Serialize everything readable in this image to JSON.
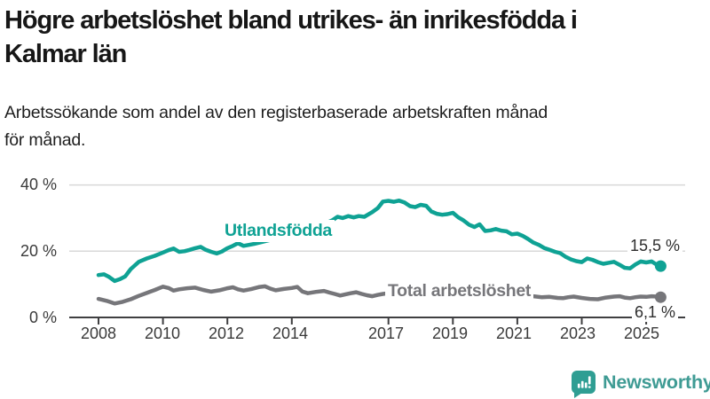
{
  "header": {
    "title_lines": [
      "Högre arbetslöshet bland utrikes- än inrikesfödda i",
      "Kalmar län"
    ],
    "subtitle_lines": [
      "Arbetssökande som andel av den registerbaserade arbetskraften månad",
      "för månad."
    ]
  },
  "chart_data": {
    "type": "line",
    "title": "Högre arbetslöshet bland utrikes- än inrikesfödda i Kalmar län",
    "subtitle": "Arbetssökande som andel av den registerbaserade arbetskraften månad för månad.",
    "unit": "%",
    "ylim": [
      0,
      42
    ],
    "x_range": [
      2008,
      2025.5
    ],
    "grid": "horizontal",
    "grid_color": "#d9d9d9",
    "axis_color": "#3f3f41",
    "legend_position": "inline-labels-on-lines",
    "y_ticks": [
      {
        "value": 0,
        "label": "0 %"
      },
      {
        "value": 20,
        "label": "20 %"
      },
      {
        "value": 40,
        "label": "40 %"
      }
    ],
    "x_ticks": [
      {
        "value": 2008,
        "label": "2008"
      },
      {
        "value": 2010,
        "label": "2010"
      },
      {
        "value": 2012,
        "label": "2012"
      },
      {
        "value": 2014,
        "label": "2014"
      },
      {
        "value": 2017,
        "label": "2017"
      },
      {
        "value": 2019,
        "label": "2019"
      },
      {
        "value": 2021,
        "label": "2021"
      },
      {
        "value": 2023,
        "label": "2023"
      },
      {
        "value": 2025,
        "label": "2025"
      }
    ],
    "series": [
      {
        "name": "Utlandsfödda",
        "color": "#0fa294",
        "end_label": "15,5 %",
        "end_value": 15.5,
        "points": [
          [
            2008.0,
            12.8
          ],
          [
            2008.17,
            13.0
          ],
          [
            2008.33,
            12.2
          ],
          [
            2008.5,
            11.0
          ],
          [
            2008.67,
            11.6
          ],
          [
            2008.83,
            12.4
          ],
          [
            2009.0,
            14.6
          ],
          [
            2009.25,
            16.8
          ],
          [
            2009.5,
            17.8
          ],
          [
            2009.75,
            18.6
          ],
          [
            2010.0,
            19.6
          ],
          [
            2010.17,
            20.3
          ],
          [
            2010.33,
            20.8
          ],
          [
            2010.5,
            19.8
          ],
          [
            2010.67,
            20.0
          ],
          [
            2010.83,
            20.4
          ],
          [
            2011.0,
            20.9
          ],
          [
            2011.17,
            21.3
          ],
          [
            2011.33,
            20.4
          ],
          [
            2011.5,
            19.8
          ],
          [
            2011.67,
            19.3
          ],
          [
            2011.83,
            19.9
          ],
          [
            2012.0,
            20.9
          ],
          [
            2012.17,
            21.6
          ],
          [
            2012.33,
            22.4
          ],
          [
            2012.5,
            21.6
          ],
          [
            2012.67,
            21.9
          ],
          [
            2012.83,
            22.2
          ],
          [
            2013.0,
            22.6
          ],
          [
            2013.25,
            23.2
          ],
          [
            2013.5,
            23.8
          ],
          [
            2013.75,
            24.4
          ],
          [
            2014.0,
            25.1
          ],
          [
            2014.25,
            25.8
          ],
          [
            2014.5,
            26.5
          ],
          [
            2014.75,
            27.3
          ],
          [
            2015.0,
            28.2
          ],
          [
            2015.25,
            29.3
          ],
          [
            2015.42,
            30.4
          ],
          [
            2015.58,
            30.0
          ],
          [
            2015.75,
            30.6
          ],
          [
            2015.92,
            30.2
          ],
          [
            2016.08,
            30.6
          ],
          [
            2016.25,
            30.4
          ],
          [
            2016.5,
            31.8
          ],
          [
            2016.67,
            33.0
          ],
          [
            2016.83,
            35.0
          ],
          [
            2017.0,
            35.2
          ],
          [
            2017.17,
            34.9
          ],
          [
            2017.33,
            35.3
          ],
          [
            2017.5,
            34.7
          ],
          [
            2017.67,
            33.6
          ],
          [
            2017.83,
            33.3
          ],
          [
            2018.0,
            34.0
          ],
          [
            2018.17,
            33.7
          ],
          [
            2018.33,
            32.0
          ],
          [
            2018.5,
            31.3
          ],
          [
            2018.67,
            31.0
          ],
          [
            2018.83,
            31.2
          ],
          [
            2019.0,
            31.6
          ],
          [
            2019.17,
            30.2
          ],
          [
            2019.33,
            29.3
          ],
          [
            2019.5,
            28.0
          ],
          [
            2019.67,
            27.3
          ],
          [
            2019.83,
            28.1
          ],
          [
            2020.0,
            26.1
          ],
          [
            2020.17,
            26.3
          ],
          [
            2020.33,
            26.7
          ],
          [
            2020.5,
            26.2
          ],
          [
            2020.67,
            26.0
          ],
          [
            2020.83,
            25.1
          ],
          [
            2021.0,
            25.3
          ],
          [
            2021.17,
            24.6
          ],
          [
            2021.33,
            23.7
          ],
          [
            2021.5,
            22.6
          ],
          [
            2021.67,
            21.9
          ],
          [
            2021.83,
            21.0
          ],
          [
            2022.0,
            20.4
          ],
          [
            2022.17,
            19.8
          ],
          [
            2022.33,
            19.4
          ],
          [
            2022.5,
            18.3
          ],
          [
            2022.67,
            17.5
          ],
          [
            2022.83,
            17.0
          ],
          [
            2023.0,
            16.7
          ],
          [
            2023.17,
            17.8
          ],
          [
            2023.33,
            17.4
          ],
          [
            2023.5,
            16.7
          ],
          [
            2023.67,
            16.2
          ],
          [
            2023.83,
            16.5
          ],
          [
            2024.0,
            16.8
          ],
          [
            2024.17,
            15.9
          ],
          [
            2024.33,
            15.0
          ],
          [
            2024.5,
            14.8
          ],
          [
            2024.67,
            16.0
          ],
          [
            2024.83,
            16.9
          ],
          [
            2025.0,
            16.6
          ],
          [
            2025.17,
            16.9
          ],
          [
            2025.33,
            15.9
          ],
          [
            2025.45,
            15.5
          ]
        ]
      },
      {
        "name": "Total arbetslöshet",
        "color": "#76767a",
        "end_label": "6,1 %",
        "end_value": 6.1,
        "points": [
          [
            2008.0,
            5.6
          ],
          [
            2008.25,
            5.0
          ],
          [
            2008.5,
            4.2
          ],
          [
            2008.75,
            4.7
          ],
          [
            2009.0,
            5.5
          ],
          [
            2009.25,
            6.5
          ],
          [
            2009.5,
            7.4
          ],
          [
            2009.75,
            8.3
          ],
          [
            2010.0,
            9.3
          ],
          [
            2010.17,
            8.9
          ],
          [
            2010.33,
            8.1
          ],
          [
            2010.5,
            8.5
          ],
          [
            2010.75,
            8.8
          ],
          [
            2011.0,
            9.0
          ],
          [
            2011.25,
            8.3
          ],
          [
            2011.5,
            7.8
          ],
          [
            2011.75,
            8.2
          ],
          [
            2012.0,
            8.8
          ],
          [
            2012.17,
            9.1
          ],
          [
            2012.33,
            8.5
          ],
          [
            2012.5,
            8.1
          ],
          [
            2012.75,
            8.6
          ],
          [
            2013.0,
            9.2
          ],
          [
            2013.17,
            9.4
          ],
          [
            2013.33,
            8.7
          ],
          [
            2013.5,
            8.2
          ],
          [
            2013.75,
            8.6
          ],
          [
            2014.0,
            8.9
          ],
          [
            2014.17,
            9.2
          ],
          [
            2014.33,
            7.8
          ],
          [
            2014.5,
            7.3
          ],
          [
            2014.75,
            7.7
          ],
          [
            2015.0,
            8.0
          ],
          [
            2015.17,
            7.5
          ],
          [
            2015.33,
            7.1
          ],
          [
            2015.5,
            6.6
          ],
          [
            2015.67,
            7.0
          ],
          [
            2015.83,
            7.3
          ],
          [
            2016.0,
            7.6
          ],
          [
            2016.17,
            7.1
          ],
          [
            2016.33,
            6.7
          ],
          [
            2016.5,
            6.4
          ],
          [
            2016.67,
            6.8
          ],
          [
            2016.83,
            7.1
          ],
          [
            2017.0,
            7.3
          ],
          [
            2017.25,
            7.0
          ],
          [
            2017.5,
            6.6
          ],
          [
            2017.75,
            6.9
          ],
          [
            2018.0,
            7.1
          ],
          [
            2018.25,
            6.6
          ],
          [
            2018.5,
            6.2
          ],
          [
            2018.75,
            6.5
          ],
          [
            2019.0,
            6.8
          ],
          [
            2019.25,
            6.4
          ],
          [
            2019.5,
            6.2
          ],
          [
            2019.75,
            6.5
          ],
          [
            2020.0,
            6.7
          ],
          [
            2020.25,
            7.6
          ],
          [
            2020.5,
            7.9
          ],
          [
            2020.75,
            7.5
          ],
          [
            2021.0,
            7.3
          ],
          [
            2021.25,
            6.9
          ],
          [
            2021.5,
            6.4
          ],
          [
            2021.75,
            6.1
          ],
          [
            2022.0,
            6.2
          ],
          [
            2022.25,
            5.9
          ],
          [
            2022.42,
            5.8
          ],
          [
            2022.58,
            6.1
          ],
          [
            2022.75,
            6.3
          ],
          [
            2023.0,
            5.9
          ],
          [
            2023.25,
            5.6
          ],
          [
            2023.5,
            5.5
          ],
          [
            2023.75,
            6.0
          ],
          [
            2024.0,
            6.3
          ],
          [
            2024.17,
            6.4
          ],
          [
            2024.33,
            6.0
          ],
          [
            2024.5,
            5.8
          ],
          [
            2024.67,
            6.1
          ],
          [
            2024.83,
            6.3
          ],
          [
            2025.0,
            6.2
          ],
          [
            2025.17,
            6.4
          ],
          [
            2025.33,
            6.3
          ],
          [
            2025.45,
            6.1
          ]
        ]
      }
    ]
  },
  "footer": {
    "brand": "Newsworthy",
    "brand_color": "#3f9b94",
    "icon_color": "#2f9e93",
    "icon": "bar-chart-speech-bubble-icon"
  }
}
